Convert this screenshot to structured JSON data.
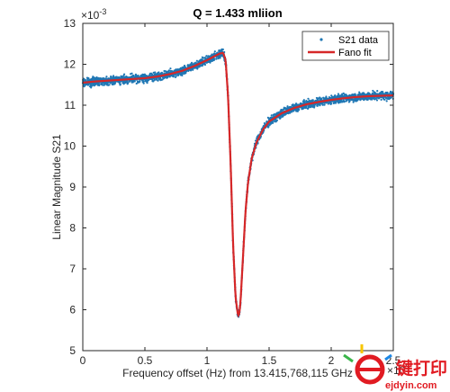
{
  "chart_data": {
    "type": "scatter",
    "title": "Q = 1.433 mliion",
    "xlabel": "Frequency offset (Hz) from 13.415,768,115 GHz",
    "ylabel": "Linear Magnitude S21",
    "xlim": [
      0,
      2.5
    ],
    "ylim": [
      5,
      13
    ],
    "x_exponent": "×10",
    "x_exponent_power": "5",
    "y_exponent": "×10",
    "y_exponent_power": "-3",
    "x_ticks": [
      0,
      0.5,
      1,
      1.5,
      2,
      2.5
    ],
    "x_tick_labels": [
      "0",
      "0.5",
      "1",
      "1.5",
      "2",
      "2.5"
    ],
    "y_ticks": [
      5,
      6,
      7,
      8,
      9,
      10,
      11,
      12,
      13
    ],
    "y_tick_labels": [
      "5",
      "6",
      "7",
      "8",
      "9",
      "10",
      "11",
      "12",
      "13"
    ],
    "grid": false,
    "legend_position": "top-right",
    "series": [
      {
        "name": "S21 data",
        "kind": "points",
        "color": "#1f77b4",
        "noise": 0.07,
        "x": [
          0,
          0.1,
          0.2,
          0.3,
          0.4,
          0.5,
          0.6,
          0.7,
          0.8,
          0.9,
          1.0,
          1.05,
          1.1,
          1.13,
          1.15,
          1.17,
          1.19,
          1.21,
          1.23,
          1.25,
          1.26,
          1.27,
          1.29,
          1.31,
          1.33,
          1.36,
          1.4,
          1.45,
          1.5,
          1.6,
          1.7,
          1.8,
          1.9,
          2.0,
          2.1,
          2.2,
          2.3,
          2.4,
          2.5
        ],
        "y": [
          11.55,
          11.58,
          11.6,
          11.62,
          11.64,
          11.66,
          11.7,
          11.76,
          11.84,
          11.96,
          12.1,
          12.18,
          12.26,
          12.28,
          12.1,
          11.2,
          9.6,
          7.6,
          6.3,
          5.85,
          5.9,
          6.2,
          7.3,
          8.4,
          9.1,
          9.7,
          10.1,
          10.4,
          10.6,
          10.8,
          10.93,
          11.02,
          11.08,
          11.13,
          11.17,
          11.2,
          11.22,
          11.23,
          11.24
        ]
      },
      {
        "name": "Fano fit",
        "kind": "line",
        "color": "#d62728",
        "x": [
          0,
          0.1,
          0.2,
          0.3,
          0.4,
          0.5,
          0.6,
          0.7,
          0.8,
          0.9,
          1.0,
          1.05,
          1.1,
          1.13,
          1.15,
          1.17,
          1.19,
          1.21,
          1.23,
          1.25,
          1.26,
          1.27,
          1.29,
          1.31,
          1.33,
          1.36,
          1.4,
          1.45,
          1.5,
          1.6,
          1.7,
          1.8,
          1.9,
          2.0,
          2.1,
          2.2,
          2.3,
          2.4,
          2.5
        ],
        "y": [
          11.55,
          11.58,
          11.6,
          11.62,
          11.64,
          11.66,
          11.7,
          11.76,
          11.84,
          11.96,
          12.1,
          12.18,
          12.26,
          12.28,
          12.1,
          11.2,
          9.6,
          7.6,
          6.3,
          5.85,
          5.9,
          6.2,
          7.3,
          8.4,
          9.1,
          9.7,
          10.1,
          10.4,
          10.6,
          10.8,
          10.93,
          11.02,
          11.08,
          11.13,
          11.17,
          11.2,
          11.22,
          11.23,
          11.24
        ]
      }
    ]
  },
  "watermark": {
    "brand": "键打印",
    "url": "ejdyin.com",
    "colors": {
      "red": "#e11b22",
      "green": "#3ab54a",
      "yellow": "#f7c600",
      "blue": "#1e88e5"
    }
  }
}
